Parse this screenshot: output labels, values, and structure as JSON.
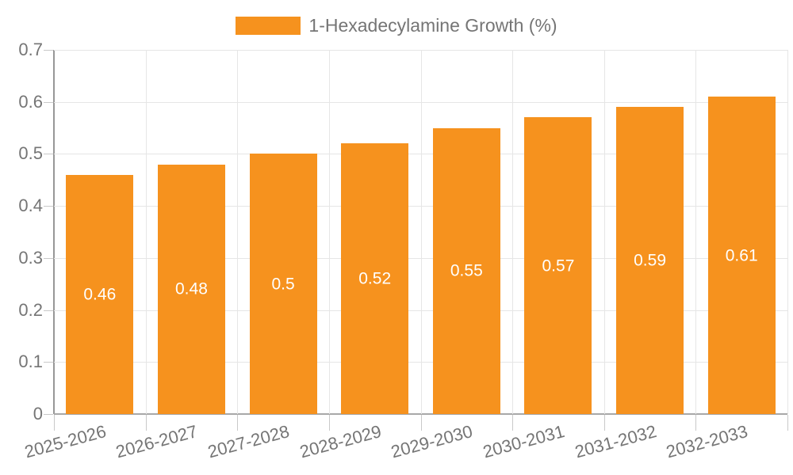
{
  "chart_data": {
    "type": "bar",
    "title": "1-Hexadecylamine Growth (%)",
    "legend": {
      "label": "1-Hexadecylamine Growth (%)",
      "position": "top"
    },
    "categories": [
      "2025-2026",
      "2026-2027",
      "2027-2028",
      "2028-2029",
      "2029-2030",
      "2030-2031",
      "2031-2032",
      "2032-2033"
    ],
    "values": [
      0.46,
      0.48,
      0.5,
      0.52,
      0.55,
      0.57,
      0.59,
      0.61
    ],
    "value_labels": [
      "0.46",
      "0.48",
      "0.5",
      "0.52",
      "0.55",
      "0.57",
      "0.59",
      "0.61"
    ],
    "xlabel": "",
    "ylabel": "",
    "ylim": [
      0,
      0.7
    ],
    "yticks": [
      0,
      0.1,
      0.2,
      0.3,
      0.4,
      0.5,
      0.6,
      0.7
    ],
    "ytick_labels": [
      "0",
      "0.1",
      "0.2",
      "0.3",
      "0.4",
      "0.5",
      "0.6",
      "0.7"
    ],
    "grid": true,
    "colors": {
      "bar": "#f6921e",
      "bar_value_text": "#ffffff",
      "axis_text": "#757575",
      "gridline": "#e6e6e6",
      "axis_line": "#979797",
      "tick": "#c9c9c9",
      "background": "#ffffff"
    }
  }
}
